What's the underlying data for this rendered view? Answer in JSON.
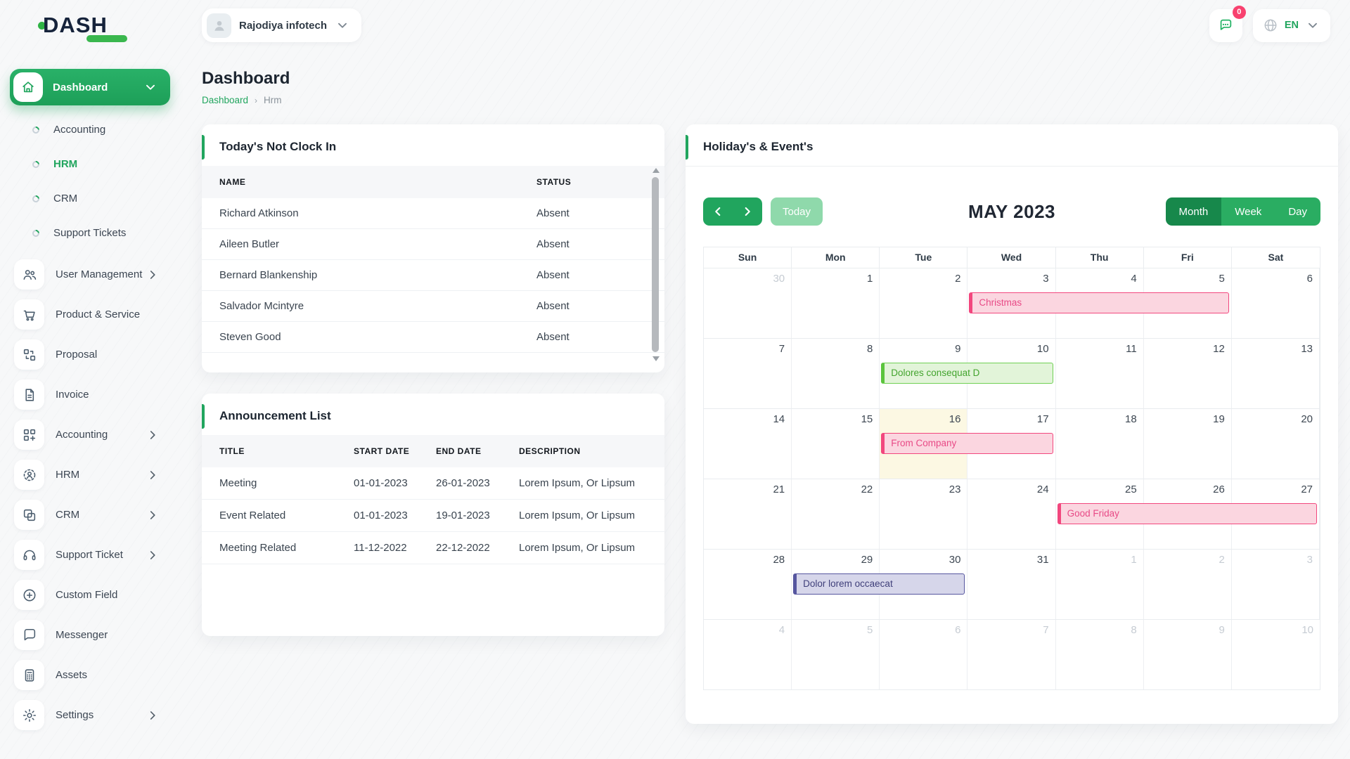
{
  "app": {
    "logo_text": "DASH"
  },
  "topbar": {
    "company_name": "Rajodiya infotech",
    "notification_count": "0",
    "language": "EN"
  },
  "page": {
    "title": "Dashboard",
    "breadcrumb": [
      "Dashboard",
      "Hrm"
    ]
  },
  "sidebar": {
    "main_item": {
      "label": "Dashboard",
      "icon": "home-icon"
    },
    "sub_items": [
      {
        "label": "Accounting",
        "active": false
      },
      {
        "label": "HRM",
        "active": true
      },
      {
        "label": "CRM",
        "active": false
      },
      {
        "label": "Support Tickets",
        "active": false
      }
    ],
    "items": [
      {
        "label": "User Management",
        "icon": "users-icon",
        "expandable": true
      },
      {
        "label": "Product & Service",
        "icon": "cart-icon",
        "expandable": false
      },
      {
        "label": "Proposal",
        "icon": "proposal-icon",
        "expandable": false
      },
      {
        "label": "Invoice",
        "icon": "invoice-icon",
        "expandable": false
      },
      {
        "label": "Accounting",
        "icon": "accounting-grid-icon",
        "expandable": true
      },
      {
        "label": "HRM",
        "icon": "hrm-icon",
        "expandable": true
      },
      {
        "label": "CRM",
        "icon": "crm-icon",
        "expandable": true
      },
      {
        "label": "Support Ticket",
        "icon": "headset-icon",
        "expandable": true
      },
      {
        "label": "Custom Field",
        "icon": "plus-circle-icon",
        "expandable": false
      },
      {
        "label": "Messenger",
        "icon": "chat-icon",
        "expandable": false
      },
      {
        "label": "Assets",
        "icon": "calculator-icon",
        "expandable": false
      },
      {
        "label": "Settings",
        "icon": "gear-icon",
        "expandable": true
      }
    ]
  },
  "clockin_card": {
    "title": "Today's Not Clock In",
    "columns": [
      "NAME",
      "STATUS"
    ],
    "rows": [
      {
        "name": "Richard Atkinson",
        "status": "Absent"
      },
      {
        "name": "Aileen Butler",
        "status": "Absent"
      },
      {
        "name": "Bernard Blankenship",
        "status": "Absent"
      },
      {
        "name": "Salvador Mcintyre",
        "status": "Absent"
      },
      {
        "name": "Steven Good",
        "status": "Absent"
      }
    ]
  },
  "announcement_card": {
    "title": "Announcement List",
    "columns": [
      "TITLE",
      "START DATE",
      "END DATE",
      "DESCRIPTION"
    ],
    "rows": [
      {
        "title": "Meeting",
        "start": "01-01-2023",
        "end": "26-01-2023",
        "desc": "Lorem Ipsum, Or Lipsum"
      },
      {
        "title": "Event Related",
        "start": "01-01-2023",
        "end": "19-01-2023",
        "desc": "Lorem Ipsum, Or Lipsum"
      },
      {
        "title": "Meeting Related",
        "start": "11-12-2022",
        "end": "22-12-2022",
        "desc": "Lorem Ipsum, Or Lipsum"
      }
    ]
  },
  "calendar_card": {
    "title": "Holiday's & Event's",
    "toolbar": {
      "today_label": "Today",
      "month_title": "MAY 2023",
      "views": [
        "Month",
        "Week",
        "Day"
      ],
      "active_view": "Month"
    },
    "weekdays": [
      "Sun",
      "Mon",
      "Tue",
      "Wed",
      "Thu",
      "Fri",
      "Sat"
    ],
    "weeks": [
      [
        {
          "d": 30,
          "muted": true
        },
        {
          "d": 1
        },
        {
          "d": 2
        },
        {
          "d": 3
        },
        {
          "d": 4
        },
        {
          "d": 5
        },
        {
          "d": 6
        }
      ],
      [
        {
          "d": 7
        },
        {
          "d": 8
        },
        {
          "d": 9
        },
        {
          "d": 10
        },
        {
          "d": 11
        },
        {
          "d": 12
        },
        {
          "d": 13
        }
      ],
      [
        {
          "d": 14
        },
        {
          "d": 15
        },
        {
          "d": 16,
          "today": true
        },
        {
          "d": 17
        },
        {
          "d": 18
        },
        {
          "d": 19
        },
        {
          "d": 20
        }
      ],
      [
        {
          "d": 21
        },
        {
          "d": 22
        },
        {
          "d": 23
        },
        {
          "d": 24
        },
        {
          "d": 25
        },
        {
          "d": 26
        },
        {
          "d": 27
        }
      ],
      [
        {
          "d": 28
        },
        {
          "d": 29
        },
        {
          "d": 30
        },
        {
          "d": 31
        },
        {
          "d": 1,
          "muted": true
        },
        {
          "d": 2,
          "muted": true
        },
        {
          "d": 3,
          "muted": true
        }
      ],
      [
        {
          "d": 4,
          "muted": true
        },
        {
          "d": 5,
          "muted": true
        },
        {
          "d": 6,
          "muted": true
        },
        {
          "d": 7,
          "muted": true
        },
        {
          "d": 8,
          "muted": true
        },
        {
          "d": 9,
          "muted": true
        },
        {
          "d": 10,
          "muted": true
        }
      ]
    ],
    "events": [
      {
        "label": "Christmas",
        "week": 0,
        "col": 3,
        "span": 3,
        "color": "pink"
      },
      {
        "label": "Dolores consequat D",
        "week": 1,
        "col": 2,
        "span": 2,
        "color": "green"
      },
      {
        "label": "From Company",
        "week": 2,
        "col": 2,
        "span": 2,
        "color": "pink"
      },
      {
        "label": "Good Friday",
        "week": 3,
        "col": 4,
        "span": 3,
        "color": "pink"
      },
      {
        "label": "Dolor lorem occaecat",
        "week": 4,
        "col": 1,
        "span": 2,
        "color": "purple"
      }
    ]
  },
  "colors": {
    "primary_green": "#21a55e",
    "active_view_green": "#17884b",
    "view_green": "#2aad62",
    "today_button_green": "#8fd9ab",
    "badge_pink": "#f8416f",
    "event_pink_border": "#f2477e",
    "event_green_border": "#5bc43d",
    "event_purple_border": "#56569f",
    "today_cell_yellow": "#fcf8e3"
  }
}
